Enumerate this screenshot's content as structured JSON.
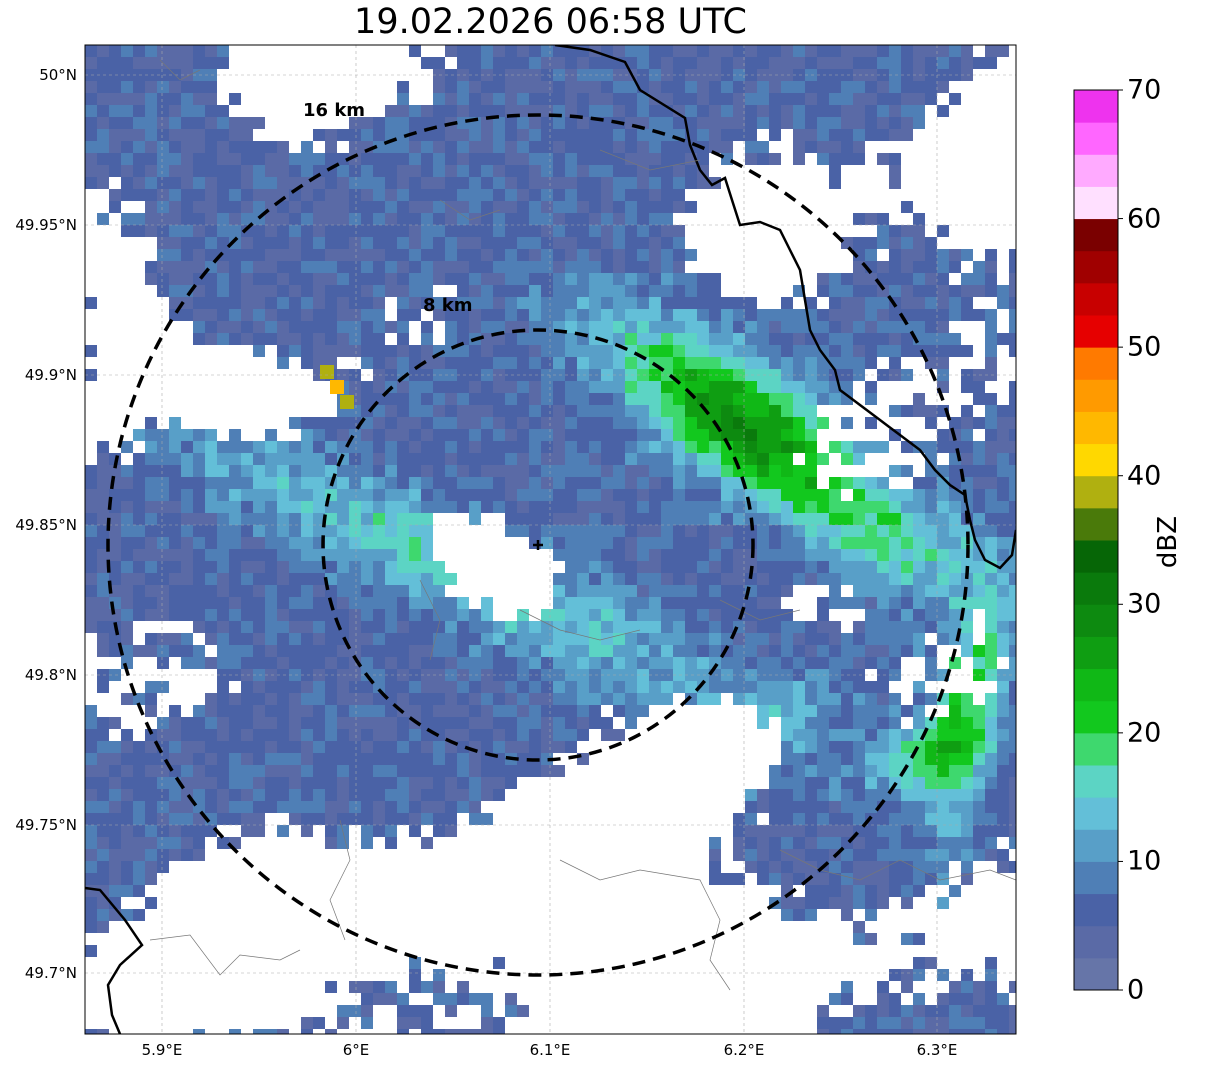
{
  "title": "19.02.2026 06:58 UTC",
  "map": {
    "lon_range": [
      5.86,
      6.34
    ],
    "lat_range": [
      49.68,
      50.01
    ],
    "radar_center": {
      "lon": 6.095,
      "lat": 49.843
    },
    "rings": [
      {
        "label": "8 km",
        "radius_km": 8
      },
      {
        "label": "16 km",
        "radius_km": 16
      }
    ],
    "lat_ticks": [
      "50°N",
      "49.95°N",
      "49.9°N",
      "49.85°N",
      "49.8°N",
      "49.75°N",
      "49.7°N"
    ],
    "lon_ticks": [
      "5.9°E",
      "6°E",
      "6.1°E",
      "6.2°E",
      "6.3°E"
    ],
    "grid": true
  },
  "colorbar": {
    "label": "dBZ",
    "tick_labels": [
      "0",
      "10",
      "20",
      "30",
      "40",
      "50",
      "60",
      "70"
    ],
    "range": [
      0,
      70
    ],
    "colors": [
      "#6675a8",
      "#5a6aa6",
      "#4a62a6",
      "#4f7fb6",
      "#589fc8",
      "#63bfd8",
      "#5cd4c4",
      "#3ed86e",
      "#12c81e",
      "#10b816",
      "#0f9e12",
      "#0d8a10",
      "#0a7a0c",
      "#066606",
      "#4a7a0a",
      "#b0b010",
      "#ffd800",
      "#ffb800",
      "#ff9a00",
      "#ff7a00",
      "#e60000",
      "#c80000",
      "#a00000",
      "#7a0000",
      "#ffe0ff",
      "#ffaaff",
      "#ff66ff",
      "#ee33ee"
    ]
  },
  "chart_data": {
    "type": "heatmap",
    "title": "19.02.2026 06:58 UTC",
    "xlabel": "",
    "ylabel": "",
    "legend_label": "dBZ",
    "zlim": [
      0,
      70
    ],
    "xlim": [
      5.86,
      6.34
    ],
    "ylim": [
      49.68,
      50.01
    ]
  }
}
